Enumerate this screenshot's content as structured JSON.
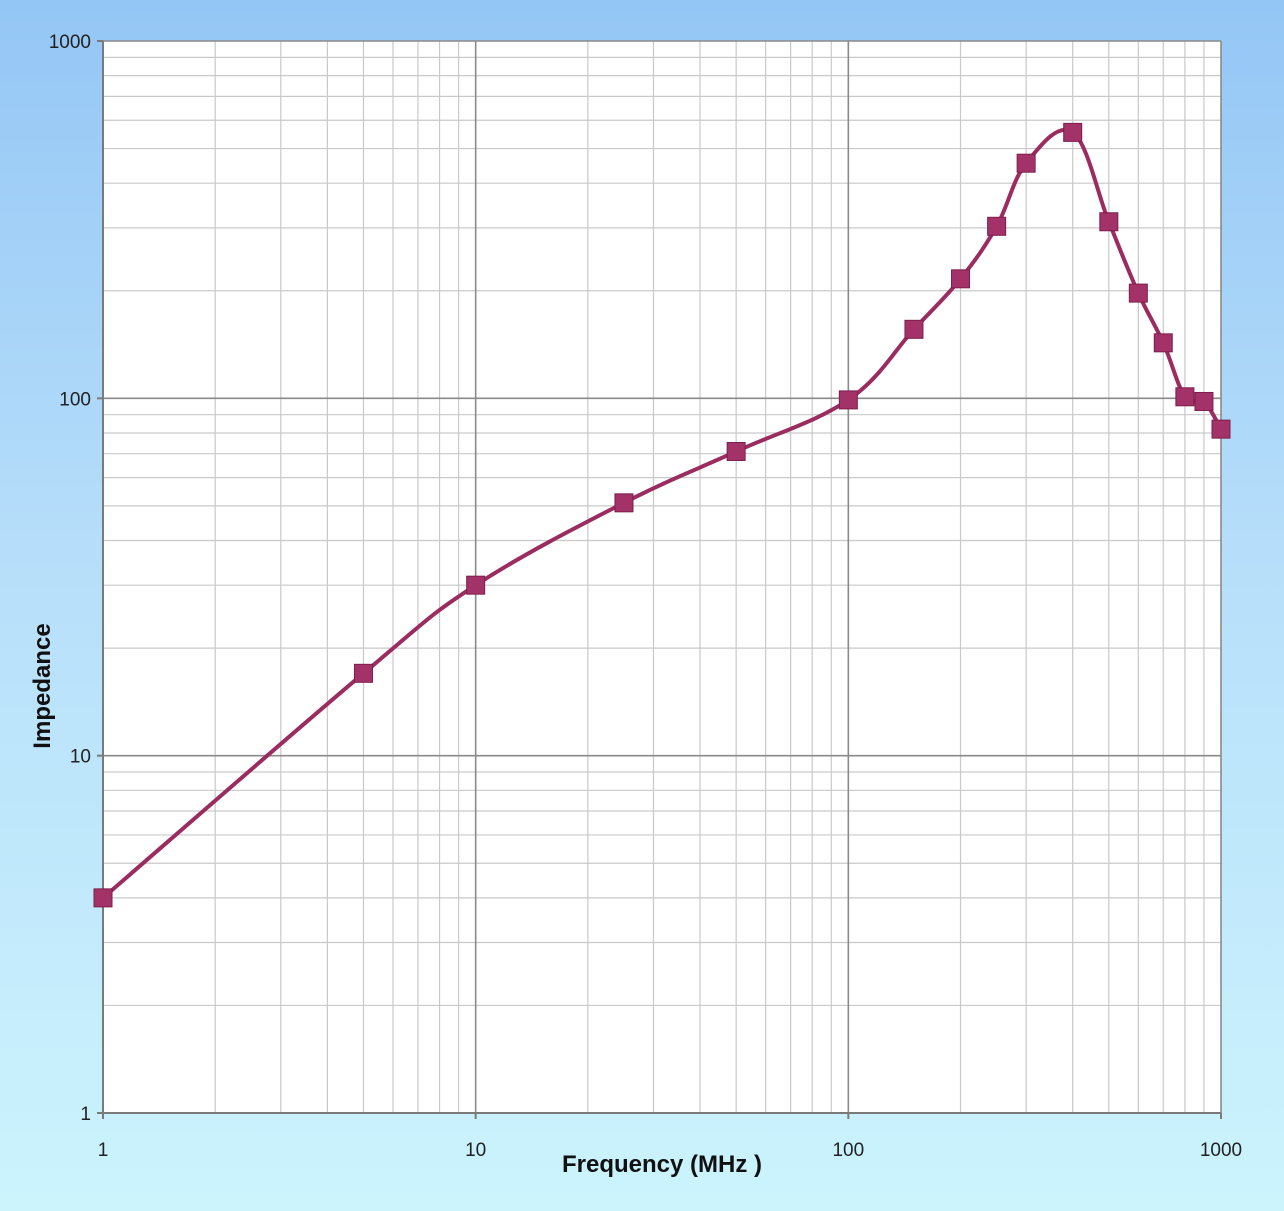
{
  "chart_data": {
    "type": "line",
    "title": "",
    "xlabel": "Frequency (MHz )",
    "ylabel": "Impedance",
    "x_scale": "log",
    "y_scale": "log",
    "xlim": [
      1,
      1000
    ],
    "ylim": [
      1,
      1000
    ],
    "x_ticks": [
      "1",
      "10",
      "100",
      "1000"
    ],
    "y_ticks": [
      "1",
      "10",
      "100",
      "1000"
    ],
    "grid": true,
    "legend": "none",
    "marker": "square",
    "series": [
      {
        "color": "#9b2c5f",
        "points": [
          {
            "x": 1,
            "y": 4
          },
          {
            "x": 5,
            "y": 17
          },
          {
            "x": 10,
            "y": 30
          },
          {
            "x": 25,
            "y": 51
          },
          {
            "x": 50,
            "y": 71
          },
          {
            "x": 100,
            "y": 99
          },
          {
            "x": 150,
            "y": 156
          },
          {
            "x": 200,
            "y": 216
          },
          {
            "x": 250,
            "y": 303
          },
          {
            "x": 300,
            "y": 455
          },
          {
            "x": 400,
            "y": 555
          },
          {
            "x": 500,
            "y": 312
          },
          {
            "x": 600,
            "y": 197
          },
          {
            "x": 700,
            "y": 143
          },
          {
            "x": 800,
            "y": 101
          },
          {
            "x": 900,
            "y": 98
          },
          {
            "x": 1000,
            "y": 82
          }
        ]
      }
    ]
  },
  "colors": {
    "line": "#9b2c5f",
    "marker": "#a23268",
    "grid_major": "#8a8a8a",
    "grid_minor": "#c9c9c9",
    "plot_bg": "#ffffff"
  }
}
